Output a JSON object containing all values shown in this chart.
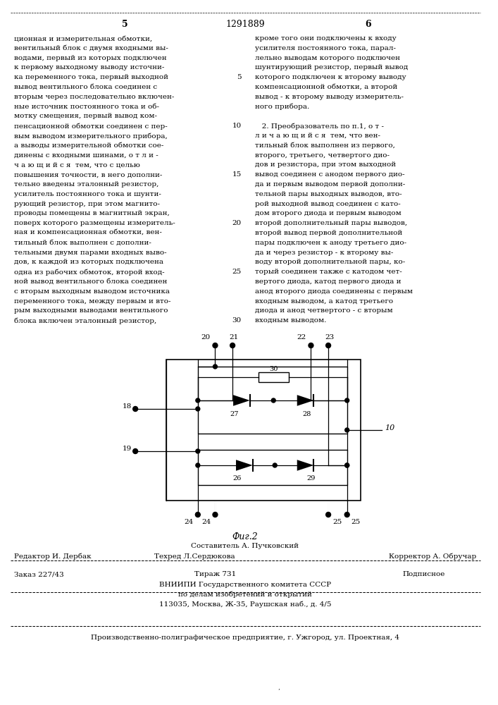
{
  "page_title": "1291889",
  "col_left_num": "5",
  "col_right_num": "6",
  "text_left": [
    "ционная и измерительная обмотки,",
    "вентильный блок с двумя входными вы-",
    "водами, первый из которых подключен",
    "к первому выходному выводу источни-",
    "ка переменного тока, первый выходной",
    "вывод вентильного блока соединен с",
    "вторым через последовательно включен-",
    "ные источник постоянного тока и об-",
    "мотку смещения, первый вывод ком-",
    "пенсационной обмотки соединен с пер-",
    "вым выводом измерительного прибора,",
    "а выводы измерительной обмотки сое-",
    "динены с входными шинами, о т л и -",
    "ч а ю щ и й с я  тем, что с целью",
    "повышения точности, в него дополни-",
    "тельно введены эталонный резистор,",
    "усилитель постоянного тока и шунти-",
    "рующий резистор, при этом магнито-",
    "проводы помещены в магнитный экран,",
    "поверх которого размещены измеритель-",
    "ная и компенсационная обмотки, вен-",
    "тильный блок выполнен с дополни-",
    "тельными двумя парами входных выво-",
    "дов, к каждой из которых подключена",
    "одна из рабочих обмоток, второй вход-",
    "ной вывод вентильного блока соединен",
    "с вторым выходным выводом источника",
    "переменного тока, между первым и вто-",
    "рым выходными выводами вентильного",
    "блока включен эталонный резистор,"
  ],
  "text_right": [
    "кроме того они подключены к входу",
    "усилителя постоянного тока, парал-",
    "лельно выводам которого подключен",
    "шунтирующий резистор, первый вывод",
    "которого подключен к второму выводу",
    "компенсационной обмотки, а второй",
    "вывод - к второму выводу измеритель-",
    "ного прибора.",
    "",
    "   2. Преобразователь по п.1, о т -",
    "л и ч а ю щ и й с я  тем, что вен-",
    "тильный блок выполнен из первого,",
    "второго, третьего, четвертого дио-",
    "дов и резистора, при этом выходной",
    "вывод соединен с анодом первого дио-",
    "да и первым выводом первой дополни-",
    "тельной пары выходных выводов, вто-",
    "рой выходной вывод соединен с като-",
    "дом второго диода и первым выводом",
    "второй дополнительный пары выводов,",
    "второй вывод первой дополнительной",
    "пары подключен к аноду третьего дио-",
    "да и через резистор - к второму вы-",
    "воду второй дополнительной пары, ко-",
    "торый соединен также с катодом чет-",
    "вертого диода, катод первого диода и",
    "анод второго диода соединены с первым",
    "входным выводом, а катод третьего",
    "диода и анод четвертого - с вторым",
    "входным выводом."
  ],
  "line_numbers": [
    5,
    10,
    15,
    20,
    25,
    30
  ],
  "fig_label": "Фиг.2",
  "footer_sestavitel": "Составитель А. Пучковский",
  "footer_redaktor": "Редактор И. Дербак",
  "footer_tekhred": "Техред Л.Сердюкова",
  "footer_korrektor": "Корректор А. Обручар",
  "footer_zakaz": "Заказ 227/43",
  "footer_tirazh": "Тираж 731",
  "footer_podpisnoe": "Подписное",
  "footer_vniiipi": "ВНИИПИ Государственного комитета СССР",
  "footer_po": "по делам изобретений и открытий",
  "footer_address": "113035, Москва, Ж-35, Раушская наб., д. 4/5",
  "footer_factory": "Производственно-полиграфическое предприятие, г. Ужгород, ул. Проектная, 4",
  "bg_color": "#ffffff"
}
